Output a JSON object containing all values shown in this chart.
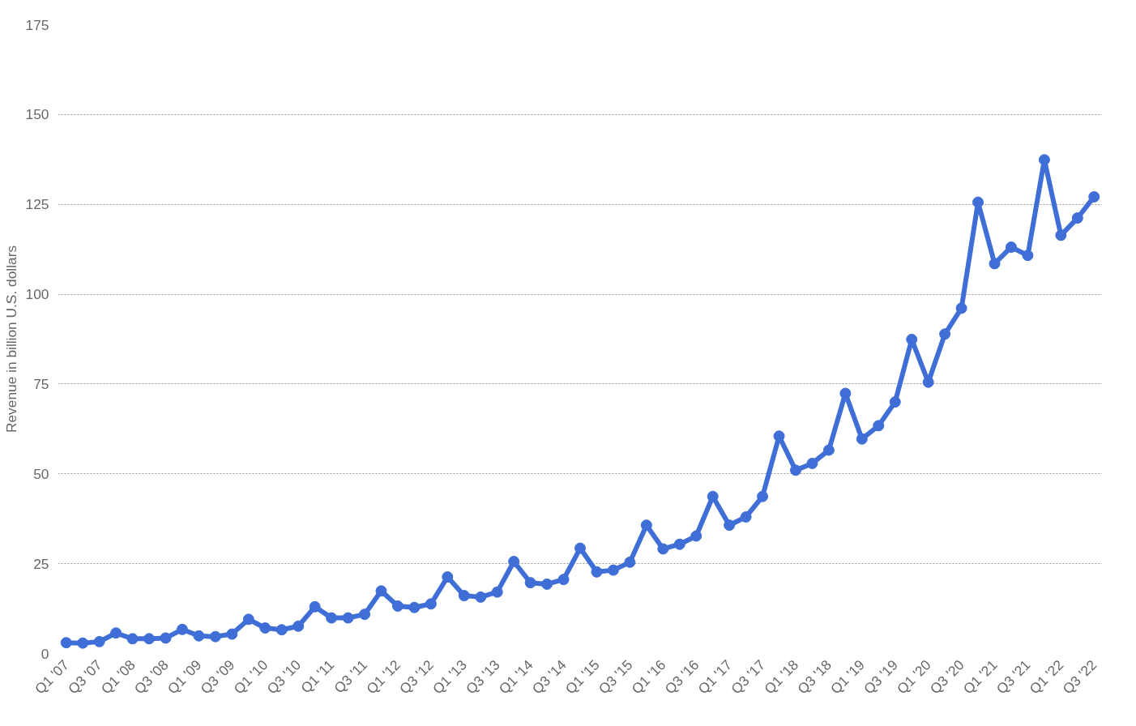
{
  "chart_data": {
    "type": "line",
    "ylabel": "Revenue in billion U.S. dollars",
    "categories": [
      "Q1 '07",
      null,
      "Q3 '07",
      null,
      "Q1 '08",
      null,
      "Q3 '08",
      null,
      "Q1 '09",
      null,
      "Q3 '09",
      null,
      "Q1 '10",
      null,
      "Q3 '10",
      null,
      "Q1 '11",
      null,
      "Q3 '11",
      null,
      "Q1 '12",
      null,
      "Q3 '12",
      null,
      "Q1 '13",
      null,
      "Q3 '13",
      null,
      "Q1 '14",
      null,
      "Q3 '14",
      null,
      "Q1 '15",
      null,
      "Q3 '15",
      null,
      "Q1 '16",
      null,
      "Q3 '16",
      null,
      "Q1 '17",
      null,
      "Q3 '17",
      null,
      "Q1 '18",
      null,
      "Q3 '18",
      null,
      "Q1 '19",
      null,
      "Q3 '19",
      null,
      "Q1 '20",
      null,
      "Q3 '20",
      null,
      "Q1 '21",
      null,
      "Q3 '21",
      null,
      "Q1 '22",
      null,
      "Q3 '22"
    ],
    "series": [
      {
        "color": "#3f6fd6",
        "values": [
          3.0,
          2.9,
          3.3,
          5.7,
          4.1,
          4.1,
          4.3,
          6.7,
          4.9,
          4.7,
          5.4,
          9.5,
          7.1,
          6.6,
          7.6,
          13.0,
          9.9,
          9.9,
          10.9,
          17.4,
          13.2,
          12.8,
          13.8,
          21.3,
          16.1,
          15.7,
          17.1,
          25.6,
          19.7,
          19.3,
          20.6,
          29.3,
          22.7,
          23.2,
          25.4,
          35.7,
          29.1,
          30.4,
          32.7,
          43.7,
          35.7,
          38.0,
          43.7,
          60.5,
          51.0,
          52.9,
          56.6,
          72.4,
          59.7,
          63.4,
          70.0,
          87.4,
          75.5,
          88.9,
          96.1,
          125.6,
          108.5,
          113.1,
          110.8,
          137.4,
          116.4,
          121.2,
          127.1
        ]
      }
    ],
    "ylim": [
      0,
      175
    ],
    "yticks": [
      0,
      25,
      50,
      75,
      100,
      125,
      150,
      175
    ],
    "grid": "y",
    "marker": "circle",
    "line_style": "solid"
  }
}
